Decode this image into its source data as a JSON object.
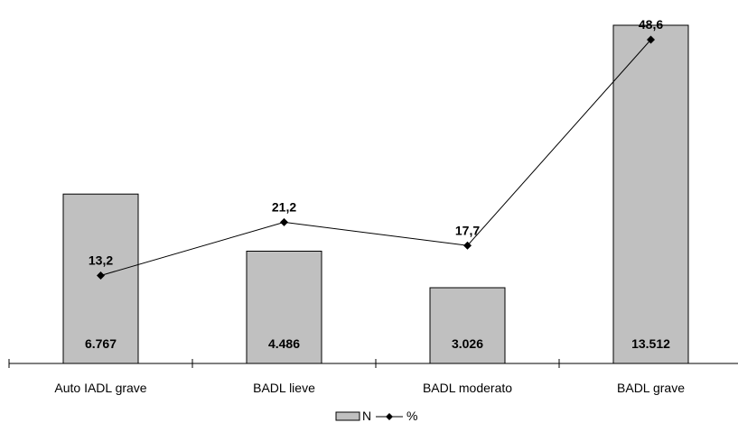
{
  "chart_data": {
    "type": "bar",
    "categories": [
      "Auto IADL grave",
      "BADL lieve",
      "BADL moderato",
      "BADL grave"
    ],
    "series": [
      {
        "name": "N",
        "type": "bar",
        "values": [
          6767,
          4486,
          3026,
          13512
        ],
        "labels": [
          "6.767",
          "4.486",
          "3.026",
          "13.512"
        ],
        "color": "#c0c0c0"
      },
      {
        "name": "%",
        "type": "line",
        "values": [
          13.2,
          21.2,
          17.7,
          48.6
        ],
        "labels": [
          "13,2",
          "21,2",
          "17,7",
          "48,6"
        ],
        "color": "#000000"
      }
    ],
    "legend": {
      "position": "bottom",
      "items": [
        "N",
        "%"
      ]
    },
    "grid": false
  }
}
